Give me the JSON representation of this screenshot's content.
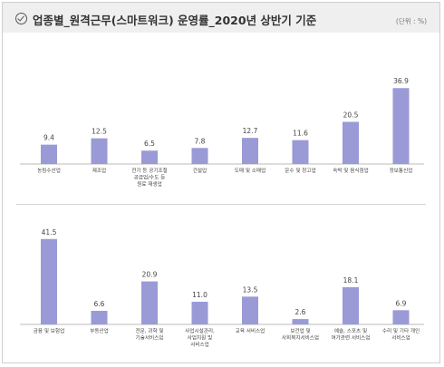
{
  "header": {
    "title": "업종별_원격근무(스마트워크) 운영률_2020년 상반기 기준",
    "unit": "(단위 : %)"
  },
  "colors": {
    "bar": "#9a9ad6",
    "text": "#444444",
    "axis": "#bbbbbb"
  },
  "chart_data": [
    {
      "type": "bar",
      "categories": [
        [
          "농림수산업"
        ],
        [
          "제조업"
        ],
        [
          "전기 등 공기조절",
          "공급업/수도 등",
          "원료 재생업"
        ],
        [
          "건설업"
        ],
        [
          "도매 및 소매업"
        ],
        [
          "운수 및 창고업"
        ],
        [
          "숙박 및 음식점업"
        ],
        [
          "정보통신업"
        ]
      ],
      "values": [
        9.4,
        12.5,
        6.5,
        7.8,
        12.7,
        11.6,
        20.5,
        36.9
      ]
    },
    {
      "type": "bar",
      "categories": [
        [
          "금융 및 보험업"
        ],
        [
          "부동산업"
        ],
        [
          "전문, 과학 및",
          "기술서비스업"
        ],
        [
          "사업시설관리,",
          "사업지원 및",
          "서비스업"
        ],
        [
          "교육 서비스업"
        ],
        [
          "보건업 및",
          "사회복지서비스업"
        ],
        [
          "예술, 스포츠 및",
          "여가관련 서비스업"
        ],
        [
          "수리 및 기타 개인",
          "서비스업"
        ]
      ],
      "values": [
        41.5,
        6.6,
        20.9,
        11.0,
        13.5,
        2.6,
        18.1,
        6.9
      ]
    }
  ]
}
